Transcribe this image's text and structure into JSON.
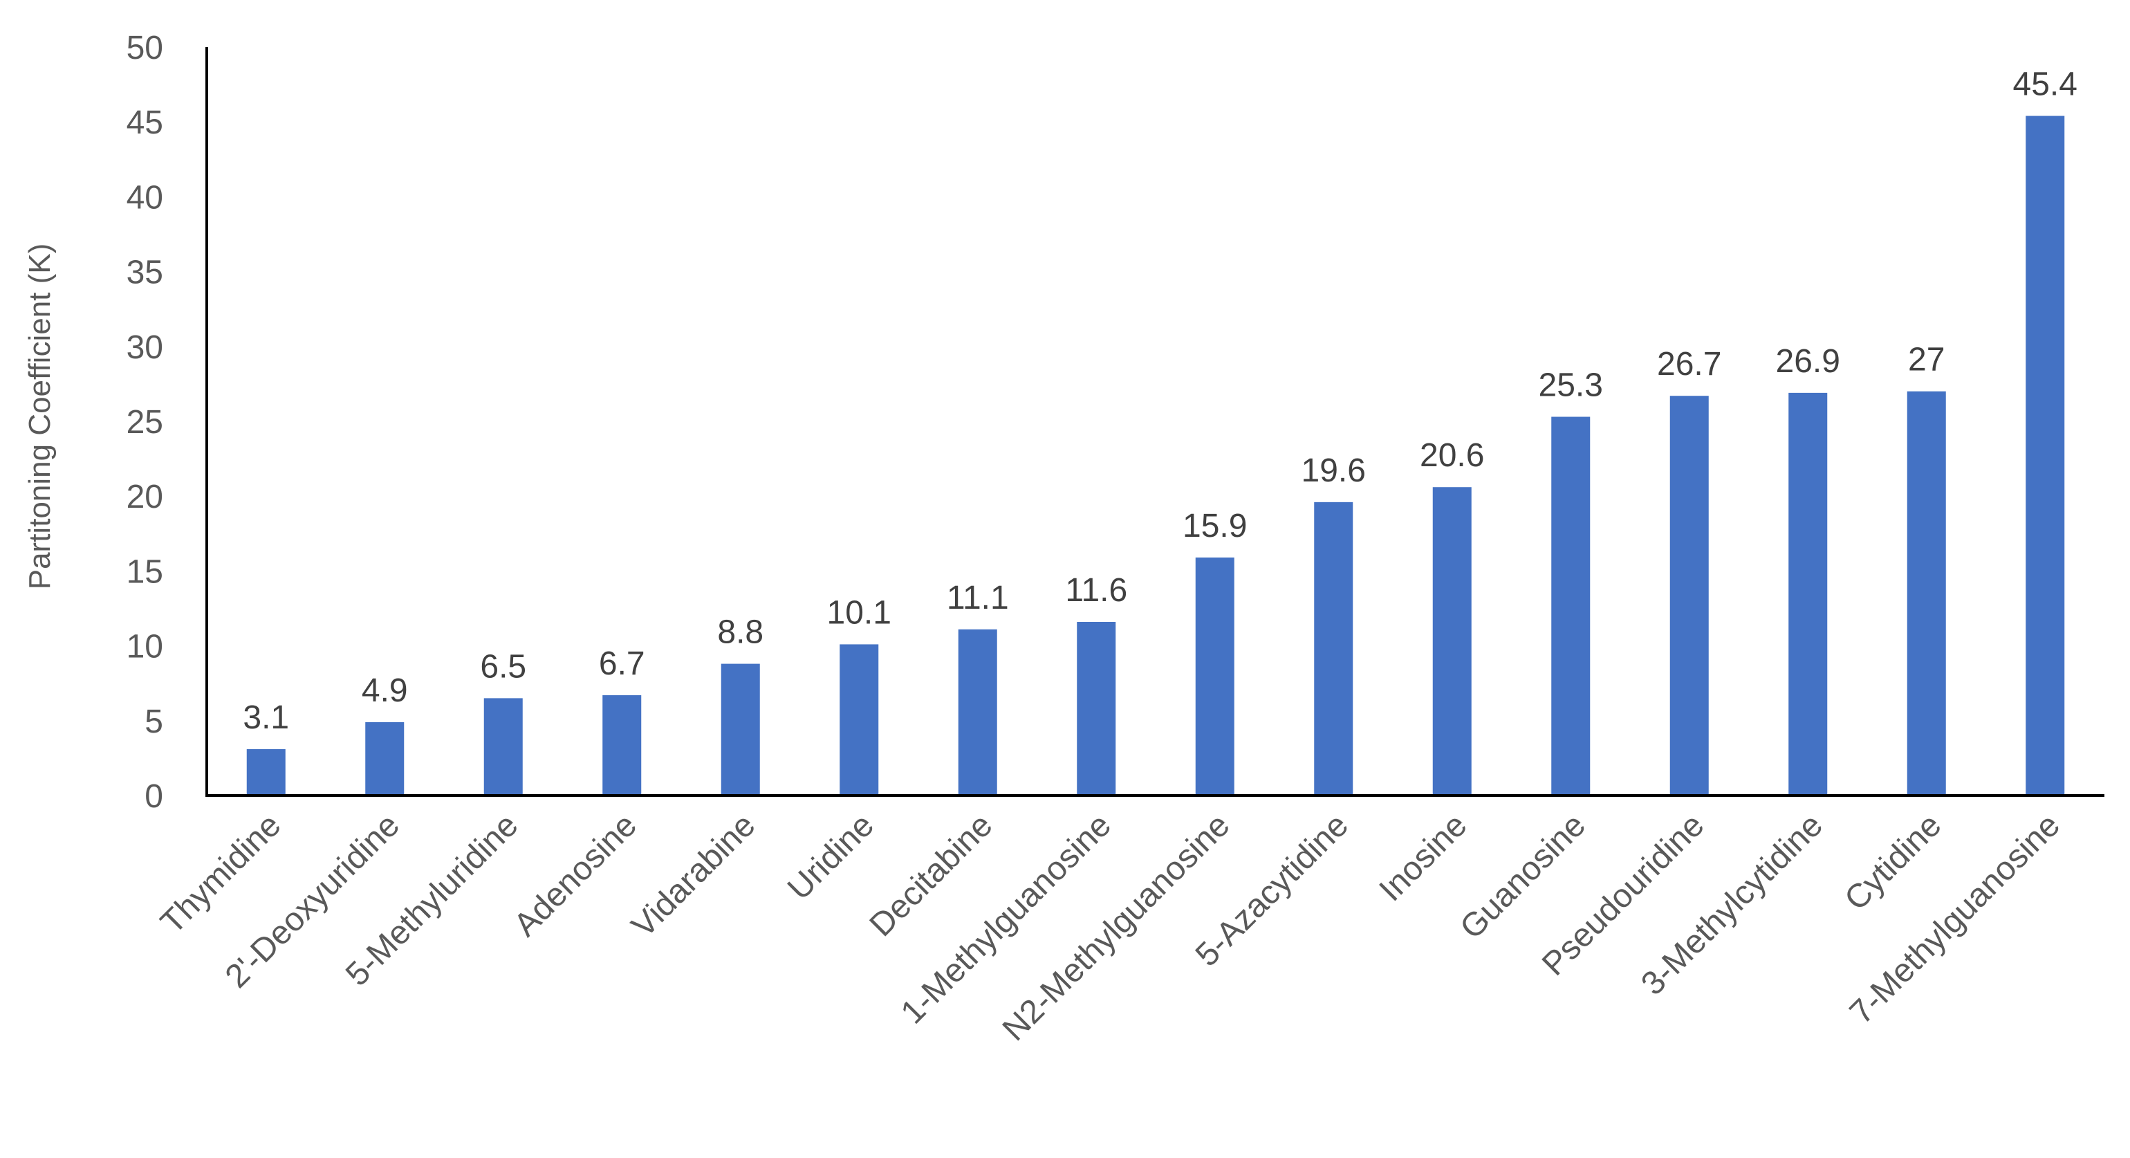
{
  "chart_data": {
    "type": "bar",
    "title": "",
    "xlabel": "",
    "ylabel": "Partitoning Coefficient (K)",
    "ylim": [
      0,
      50
    ],
    "yticks": [
      0,
      5,
      10,
      15,
      20,
      25,
      30,
      35,
      40,
      45,
      50
    ],
    "grid": false,
    "legend": "none",
    "bar_color": "#4472C4",
    "categories": [
      "Thymidine",
      "2'-Deoxyuridine",
      "5-Methyluridine",
      "Adenosine",
      "Vidarabine",
      "Uridine",
      "Decitabine",
      "1-Methylguanosine",
      "N2-Methylguanosine",
      "5-Azacytidine",
      "Inosine",
      "Guanosine",
      "Pseudouridine",
      "3-Methylcytidine",
      "Cytidine",
      "7-Methylguanosine"
    ],
    "values": [
      3.1,
      4.9,
      6.5,
      6.7,
      8.8,
      10.1,
      11.1,
      11.6,
      15.9,
      19.6,
      20.6,
      25.3,
      26.7,
      26.9,
      27,
      45.4
    ],
    "data_labels": [
      "3.1",
      "4.9",
      "6.5",
      "6.7",
      "8.8",
      "10.1",
      "11.1",
      "11.6",
      "15.9",
      "19.6",
      "20.6",
      "25.3",
      "26.7",
      "26.9",
      "27",
      "45.4"
    ]
  }
}
